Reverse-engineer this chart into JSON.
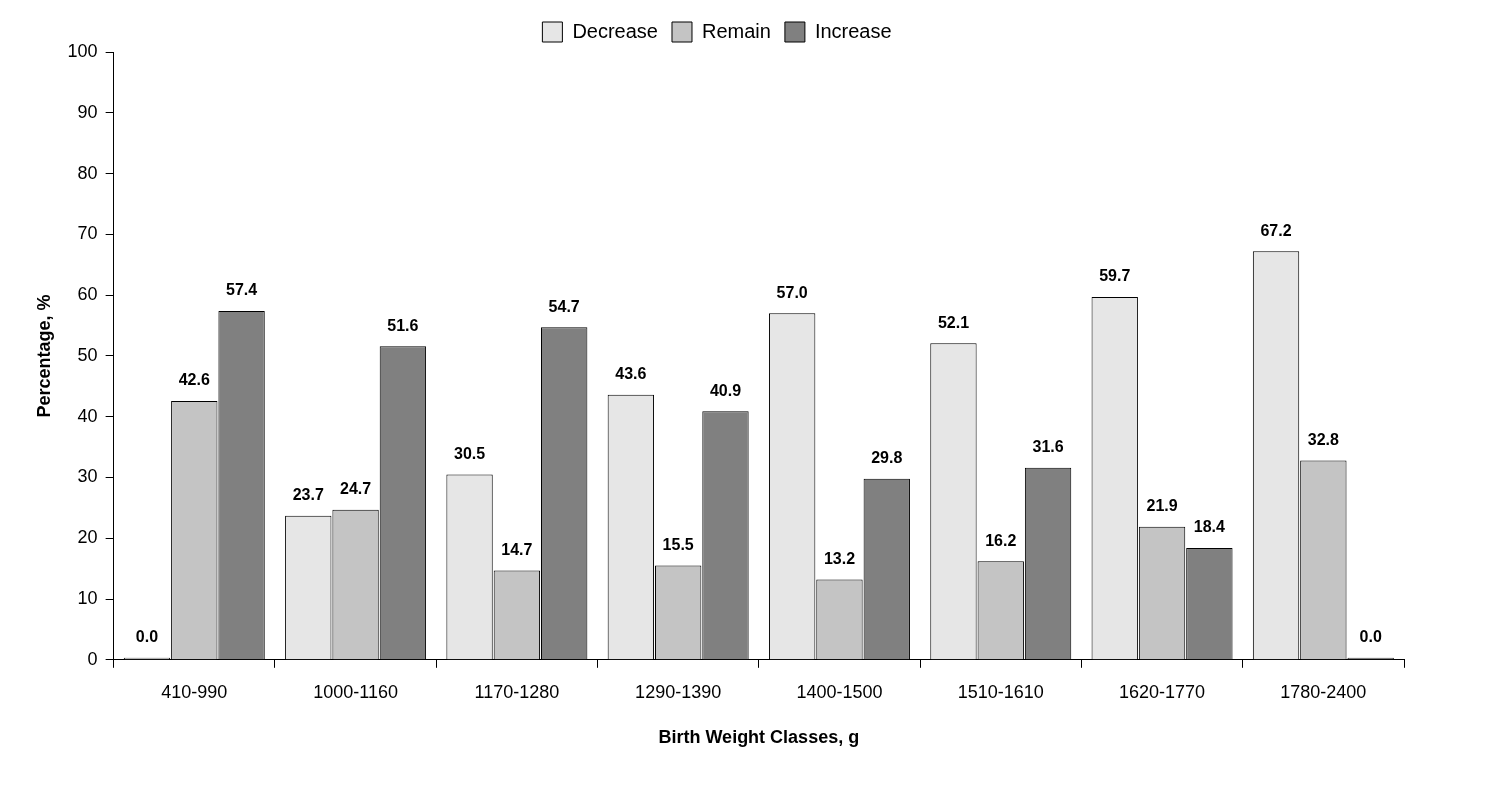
{
  "chart_data": {
    "type": "bar",
    "xlabel": "Birth Weight Classes, g",
    "ylabel": "Percentage, %",
    "categories": [
      "410-990",
      "1000-1160",
      "1170-1280",
      "1290-1390",
      "1400-1500",
      "1510-1610",
      "1620-1770",
      "1780-2400"
    ],
    "series": [
      {
        "name": "Decrease",
        "color": "#e6e6e6",
        "values": [
          0,
          23.7,
          30.5,
          43.6,
          57.0,
          52.1,
          59.7,
          67.2
        ],
        "value_labels": [
          "0.0",
          "23.7",
          "30.5",
          "43.6",
          "57.0",
          "52.1",
          "59.7",
          "67.2"
        ]
      },
      {
        "name": "Remain",
        "color": "#c4c4c4",
        "values": [
          42.6,
          24.7,
          14.7,
          15.5,
          13.2,
          16.2,
          21.9,
          32.8
        ],
        "value_labels": [
          "42.6",
          "24.7",
          "14.7",
          "15.5",
          "13.2",
          "16.2",
          "21.9",
          "32.8"
        ]
      },
      {
        "name": "Increase",
        "color": "#808080",
        "values": [
          57.4,
          51.6,
          54.7,
          40.9,
          29.8,
          31.6,
          18.4,
          0
        ],
        "value_labels": [
          "57.4",
          "51.6",
          "54.7",
          "40.9",
          "29.8",
          "31.6",
          "18.4",
          "0.0"
        ]
      }
    ],
    "ylim": [
      0,
      100
    ],
    "yticks": [
      0,
      10,
      20,
      30,
      40,
      50,
      60,
      70,
      80,
      90,
      100
    ],
    "grid": false,
    "legend": "top"
  }
}
